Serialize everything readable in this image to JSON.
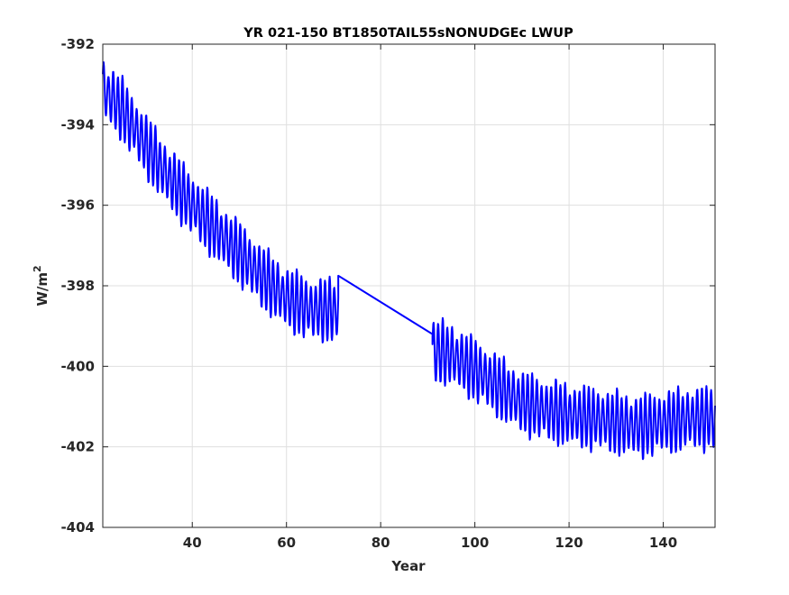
{
  "chart_data": {
    "type": "line",
    "title": "YR 021-150 BT1850TAIL55sNONUDGEc LWUP",
    "xlabel": "Year",
    "ylabel_base": "W/m",
    "ylabel_sup": "2",
    "xlim": [
      21,
      151
    ],
    "ylim": [
      -404,
      -392
    ],
    "xticks": [
      40,
      60,
      80,
      100,
      120,
      140
    ],
    "yticks": [
      -404,
      -402,
      -400,
      -398,
      -396,
      -394,
      -392
    ],
    "xtick_labels": [
      "40",
      "60",
      "80",
      "100",
      "120",
      "140"
    ],
    "ytick_labels": [
      "-404",
      "-402",
      "-400",
      "-398",
      "-396",
      "-394",
      "-392"
    ],
    "grid": true,
    "line_color": "#0000ff",
    "series": [
      {
        "segments": [
          {
            "x_range": [
              21,
              71
            ],
            "seasonal_amplitude": 0.65,
            "trend": [
              [
                21,
                -393.1
              ],
              [
                25,
                -393.6
              ],
              [
                30,
                -394.5
              ],
              [
                35,
                -395.3
              ],
              [
                40,
                -396.0
              ],
              [
                45,
                -396.6
              ],
              [
                50,
                -397.2
              ],
              [
                55,
                -397.8
              ],
              [
                60,
                -398.3
              ],
              [
                65,
                -398.6
              ],
              [
                71,
                -398.6
              ]
            ]
          },
          {
            "x_range": [
              71,
              91
            ],
            "seasonal_amplitude": 0,
            "trend": [
              [
                71,
                -397.75
              ],
              [
                91,
                -399.2
              ]
            ]
          },
          {
            "x_range": [
              91,
              151
            ],
            "seasonal_amplitude": 0.65,
            "trend": [
              [
                91,
                -399.6
              ],
              [
                95,
                -399.7
              ],
              [
                100,
                -400.1
              ],
              [
                105,
                -400.5
              ],
              [
                110,
                -400.9
              ],
              [
                115,
                -401.1
              ],
              [
                120,
                -401.2
              ],
              [
                125,
                -401.3
              ],
              [
                130,
                -401.4
              ],
              [
                135,
                -401.5
              ],
              [
                140,
                -401.4
              ],
              [
                145,
                -401.3
              ],
              [
                151,
                -401.3
              ]
            ]
          }
        ]
      }
    ]
  }
}
